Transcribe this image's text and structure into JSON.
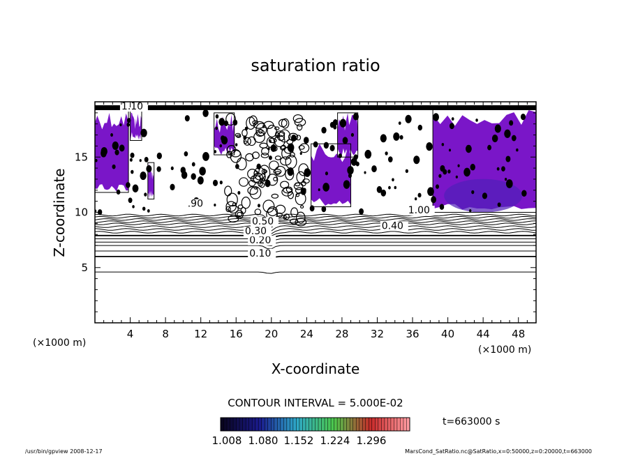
{
  "chart_data": {
    "type": "contour",
    "title": "saturation ratio",
    "xlabel": "X-coordinate",
    "ylabel": "Z-coordinate",
    "x_unit": "(×1000 m)",
    "y_unit": "(×1000 m)",
    "xlim": [
      0,
      50
    ],
    "ylim": [
      0,
      20
    ],
    "x_ticks": [
      4,
      8,
      12,
      16,
      20,
      24,
      28,
      32,
      36,
      40,
      44,
      48
    ],
    "y_ticks": [
      5,
      10,
      15
    ],
    "contour_interval_text": "CONTOUR INTERVAL = 5.000E-02",
    "contour_labels": [
      {
        "text": "0.10",
        "x": 17.5,
        "z": 6.0
      },
      {
        "text": "0.20",
        "x": 17.5,
        "z": 7.2
      },
      {
        "text": "0.30",
        "x": 17.0,
        "z": 8.0
      },
      {
        "text": "0.40",
        "x": 32.5,
        "z": 8.5
      },
      {
        "text": "0.50",
        "x": 17.8,
        "z": 8.9
      },
      {
        "text": ".90",
        "x": 10.5,
        "z": 10.5
      },
      {
        "text": "1.00",
        "x": 35.5,
        "z": 9.9
      },
      {
        "text": "1.10",
        "x": 3.0,
        "z": 19.3
      }
    ],
    "colorbar": {
      "tick_labels": [
        "1.008",
        "1.080",
        "1.152",
        "1.224",
        "1.296"
      ],
      "colors": [
        "#0a0520",
        "#1a1a8c",
        "#2ea8c8",
        "#4cc84c",
        "#c82a2a",
        "#ff9aa0"
      ]
    },
    "time_label": "t=663000 s",
    "footer_left": "/usr/bin/gpview   2008-12-17",
    "footer_right": "MarsCond_SatRatio.nc@SatRatio,x=0:50000,z=0:20000,t=663000",
    "colors": {
      "saturated_fill": "#7a16c8",
      "deep_fill": "#5020b8",
      "contour": "#000000"
    }
  }
}
